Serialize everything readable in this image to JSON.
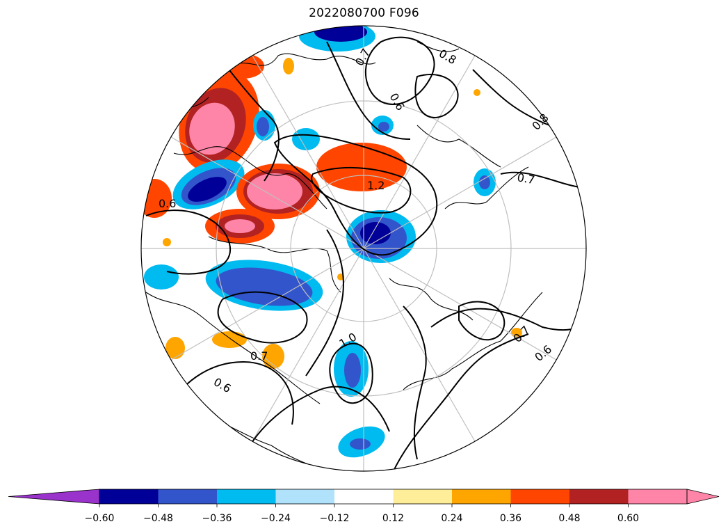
{
  "title": "2022080700 F096",
  "colorbar": {
    "colors": [
      "#9933cc",
      "#000099",
      "#3355cc",
      "#00bbf0",
      "#b0e3fb",
      "#ffffff",
      "#ffee99",
      "#ffa500",
      "#ff4500",
      "#b22222",
      "#ff85a8",
      "#ff85a8"
    ],
    "under_color": "#9933cc",
    "over_color": "#ff85a8",
    "tick_labels": [
      "−0.60",
      "−0.48",
      "−0.36",
      "−0.24",
      "−0.12",
      "0.12",
      "0.24",
      "0.36",
      "0.48",
      "0.60"
    ]
  },
  "contour_labels": [
    "0.6",
    "0.7",
    "0.8",
    "1.2",
    "1.0",
    "0.7",
    "0.6",
    "0.7",
    "0.6",
    "0.8",
    "0.7",
    "0.6"
  ],
  "chart_data": {
    "type": "heatmap",
    "projection": "north-polar-stereographic",
    "title": "2022080700 F096",
    "levels": [
      -0.6,
      -0.48,
      -0.36,
      -0.24,
      -0.12,
      0.12,
      0.24,
      0.36,
      0.48,
      0.6
    ],
    "extend": "both",
    "colorbar_location": "bottom",
    "contour_color": "#000000",
    "contour_levels_labeled": [
      0.6,
      0.7,
      0.8,
      1.0,
      1.2
    ],
    "grid": true
  }
}
